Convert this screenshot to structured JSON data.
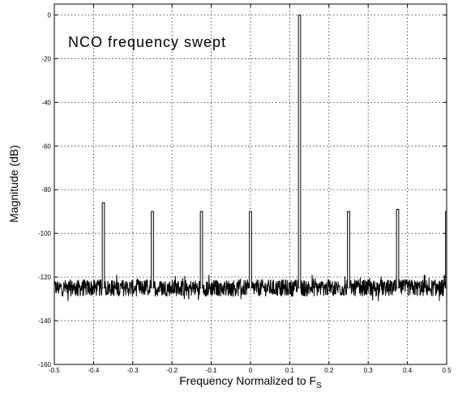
{
  "chart_data": {
    "type": "line",
    "title": "",
    "xlabel": "Frequency Normalized to F",
    "xlabel_sub": "S",
    "ylabel": "Magnitude (dB)",
    "annotation": "NCO frequency swept",
    "xlim": [
      -0.5,
      0.5
    ],
    "ylim": [
      -160,
      5
    ],
    "grid": true,
    "xticks": [
      -0.5,
      -0.4,
      -0.3,
      -0.2,
      -0.1,
      0,
      0.1,
      0.2,
      0.3,
      0.4,
      0.5
    ],
    "xtick_labels": [
      "-0.5",
      "-0.4",
      "-0.3",
      "-0.2",
      "-0.1",
      "0",
      "0.1",
      "0.2",
      "0.3",
      "0.4",
      "0.5"
    ],
    "yticks": [
      0,
      -20,
      -40,
      -60,
      -80,
      -100,
      -120,
      -140,
      -160
    ],
    "ytick_labels": [
      "0",
      "-20",
      "-40",
      "-60",
      "-80",
      "-100",
      "-120",
      "-140",
      "-160"
    ],
    "noise_floor": {
      "min": -131,
      "max": -119
    },
    "spurs": [
      {
        "x": -0.375,
        "y": -86
      },
      {
        "x": -0.25,
        "y": -90
      },
      {
        "x": -0.125,
        "y": -90
      },
      {
        "x": 0.0,
        "y": -90
      },
      {
        "x": 0.125,
        "y": 0
      },
      {
        "x": 0.25,
        "y": -90
      },
      {
        "x": 0.375,
        "y": -89
      },
      {
        "x": 0.5,
        "y": -90
      }
    ]
  }
}
